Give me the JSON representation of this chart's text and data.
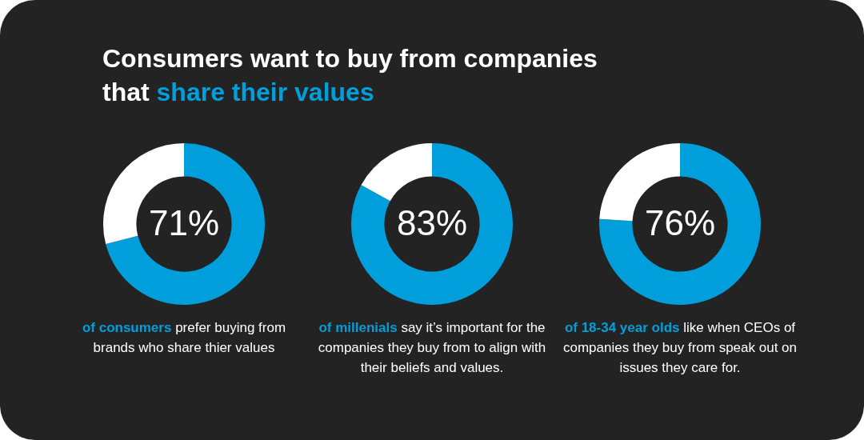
{
  "chart_data": [
    {
      "type": "other",
      "title": "Consumers want to buy from companies that",
      "subtitle": "share their values"
    },
    {
      "type": "donut",
      "categories": [
        null,
        null
      ],
      "values": [
        71,
        29
      ],
      "colors": [
        "#009fdb",
        "#ffffff"
      ],
      "value_labels": [
        "71%",
        null
      ],
      "annotations": [
        "of consumers",
        "prefer buying from brands who share thier values"
      ]
    },
    {
      "type": "donut",
      "categories": [
        null,
        null
      ],
      "values": [
        83,
        17
      ],
      "colors": [
        "#009fdb",
        "#ffffff"
      ],
      "value_labels": [
        "83%",
        null
      ],
      "annotations": [
        "of millenials",
        "say it’s important for the companies they buy from to align with their beliefs and values."
      ]
    },
    {
      "type": "donut",
      "categories": [
        null,
        null
      ],
      "values": [
        76,
        24
      ],
      "colors": [
        "#009fdb",
        "#ffffff"
      ],
      "value_labels": [
        "76%",
        null
      ],
      "annotations": [
        "of 18-34 year olds",
        "like when CEOs of companies they buy from speak out on issues they care for."
      ]
    }
  ]
}
